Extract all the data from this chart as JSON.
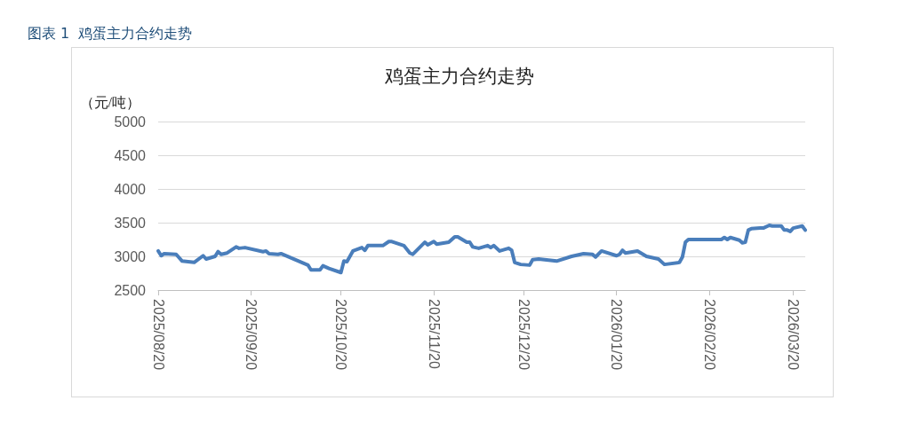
{
  "chart_data": {
    "type": "line",
    "title": "鸡蛋主力合约走势",
    "ylabel": "（元/吨）",
    "annotations": [
      "图表 1  鸡蛋主力合约走势"
    ],
    "x": [
      "2025-08-20",
      "2025-08-21",
      "2025-08-22",
      "2025-08-26",
      "2025-08-28",
      "2025-09-01",
      "2025-09-04",
      "2025-09-05",
      "2025-09-08",
      "2025-09-09",
      "2025-09-10",
      "2025-09-12",
      "2025-09-15",
      "2025-09-16",
      "2025-09-18",
      "2025-09-24",
      "2025-09-25",
      "2025-09-26",
      "2025-09-29",
      "2025-09-30",
      "2025-10-09",
      "2025-10-10",
      "2025-10-13",
      "2025-10-14",
      "2025-10-16",
      "2025-10-20",
      "2025-10-21",
      "2025-10-22",
      "2025-10-24",
      "2025-10-27",
      "2025-10-28",
      "2025-10-29",
      "2025-11-03",
      "2025-11-05",
      "2025-11-06",
      "2025-11-10",
      "2025-11-12",
      "2025-11-13",
      "2025-11-17",
      "2025-11-18",
      "2025-11-20",
      "2025-11-21",
      "2025-11-25",
      "2025-11-27",
      "2025-11-28",
      "2025-12-01",
      "2025-12-02",
      "2025-12-03",
      "2025-12-05",
      "2025-12-08",
      "2025-12-09",
      "2025-12-10",
      "2025-12-12",
      "2025-12-15",
      "2025-12-16",
      "2025-12-17",
      "2025-12-19",
      "2025-12-22",
      "2025-12-23",
      "2025-12-25",
      "2025-12-31",
      "2026-01-05",
      "2026-01-09",
      "2026-01-12",
      "2026-01-13",
      "2026-01-15",
      "2026-01-20",
      "2026-01-21",
      "2026-01-22",
      "2026-01-23",
      "2026-01-27",
      "2026-01-30",
      "2026-02-03",
      "2026-02-05",
      "2026-02-10",
      "2026-02-11",
      "2026-02-12",
      "2026-02-13",
      "2026-02-24",
      "2026-02-25",
      "2026-02-26",
      "2026-02-27",
      "2026-03-02",
      "2026-03-03",
      "2026-03-04",
      "2026-03-05",
      "2026-03-06",
      "2026-03-09",
      "2026-03-10",
      "2026-03-12",
      "2026-03-13",
      "2026-03-16",
      "2026-03-17",
      "2026-03-18",
      "2026-03-19",
      "2026-03-20",
      "2026-03-23",
      "2026-03-24"
    ],
    "series": [
      {
        "color": "#4a7ebb",
        "values": [
          3080,
          3010,
          3040,
          3030,
          2930,
          2910,
          3010,
          2960,
          3000,
          3070,
          3030,
          3050,
          3140,
          3120,
          3130,
          3070,
          3080,
          3040,
          3030,
          3040,
          2870,
          2800,
          2800,
          2860,
          2820,
          2760,
          2930,
          2920,
          3080,
          3130,
          3090,
          3160,
          3160,
          3220,
          3220,
          3160,
          3050,
          3030,
          3210,
          3170,
          3220,
          3180,
          3210,
          3290,
          3290,
          3210,
          3210,
          3140,
          3120,
          3160,
          3130,
          3160,
          3080,
          3120,
          3090,
          2910,
          2880,
          2870,
          2950,
          2960,
          2930,
          3000,
          3040,
          3030,
          2990,
          3080,
          3010,
          3030,
          3090,
          3050,
          3080,
          3000,
          2960,
          2880,
          2910,
          2990,
          3210,
          3250,
          3250,
          3280,
          3250,
          3280,
          3240,
          3200,
          3210,
          3390,
          3410,
          3420,
          3420,
          3460,
          3450,
          3450,
          3390,
          3390,
          3370,
          3420,
          3450,
          3390
        ]
      }
    ],
    "xlim": [
      "2025-08-20",
      "2026-03-24"
    ],
    "xticks": [
      {
        "value": "2025-08-20",
        "label": "2025/08/20"
      },
      {
        "value": "2025-09-20",
        "label": "2025/09/20"
      },
      {
        "value": "2025-10-20",
        "label": "2025/10/20"
      },
      {
        "value": "2025-11-20",
        "label": "2025/11/20"
      },
      {
        "value": "2025-12-20",
        "label": "2025/12/20"
      },
      {
        "value": "2026-01-20",
        "label": "2026/01/20"
      },
      {
        "value": "2026-02-20",
        "label": "2026/02/20"
      },
      {
        "value": "2026-03-20",
        "label": "2026/03/20"
      }
    ],
    "ylim": [
      2500,
      5000
    ],
    "yticks": [
      2500,
      3000,
      3500,
      4000,
      4500,
      5000
    ],
    "grid": "y",
    "marker": "none",
    "line_style": "solid"
  }
}
